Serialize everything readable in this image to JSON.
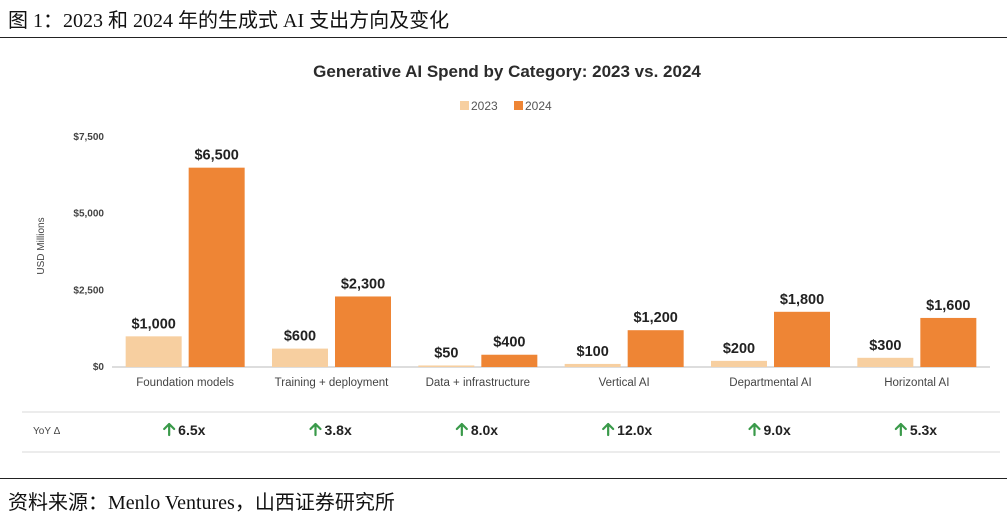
{
  "caption": "图 1：2023 和 2024 年的生成式 AI 支出方向及变化",
  "source": "资料来源：Menlo Ventures，山西证券研究所",
  "colors": {
    "series_2023": "#f7cfa0",
    "series_2024": "#ee8535",
    "axis": "#bbbbbb",
    "arrow": "#3a9a4a"
  },
  "chart_data": {
    "type": "bar",
    "title": "Generative AI Spend by Category: 2023 vs. 2024",
    "xlabel": "",
    "ylabel": "USD Millions",
    "ylim": [
      0,
      7500
    ],
    "yticks": [
      0,
      2500,
      5000,
      7500
    ],
    "ytick_labels": [
      "$0",
      "$2,500",
      "$5,000",
      "$7,500"
    ],
    "categories": [
      "Foundation models",
      "Training + deployment",
      "Data + infrastructure",
      "Vertical AI",
      "Departmental AI",
      "Horizontal AI"
    ],
    "series": [
      {
        "name": "2023",
        "values": [
          1000,
          600,
          50,
          100,
          200,
          300
        ],
        "labels": [
          "$1,000",
          "$600",
          "$50",
          "$100",
          "$200",
          "$300"
        ]
      },
      {
        "name": "2024",
        "values": [
          6500,
          2300,
          400,
          1200,
          1800,
          1600
        ],
        "labels": [
          "$6,500",
          "$2,300",
          "$400",
          "$1,200",
          "$1,800",
          "$1,600"
        ]
      }
    ],
    "legend": "top-center",
    "yoy_label": "YoY Δ",
    "yoy_values": [
      "6.5x",
      "3.8x",
      "8.0x",
      "12.0x",
      "9.0x",
      "5.3x"
    ]
  }
}
